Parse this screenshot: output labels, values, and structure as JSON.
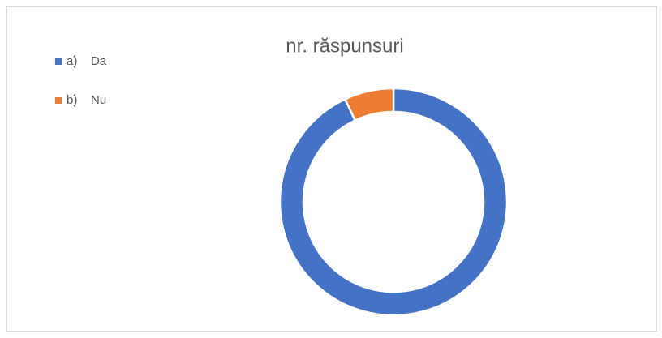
{
  "chart_data": {
    "type": "donut",
    "title": "nr. răspunsuri",
    "categories": [
      "a)    Da",
      "b)    Nu"
    ],
    "values": [
      93,
      7
    ],
    "colors": [
      "#4472c4",
      "#ed7d31"
    ],
    "legend": "top-left"
  }
}
